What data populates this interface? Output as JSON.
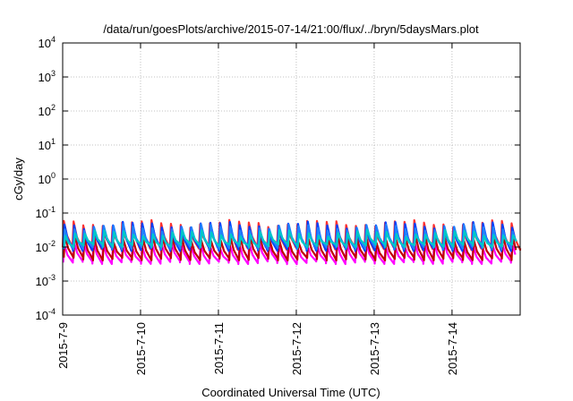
{
  "chart_data": {
    "type": "line",
    "title": "/data/run/goesPlots/archive/2015-07-14/21:00/flux/../bryn/5daysMars.plot",
    "xlabel": "Coordinated Universal Time (UTC)",
    "ylabel": "cGy/day",
    "yscale": "log",
    "grid": true,
    "xlim": [
      "2015-07-09",
      "2015-07-14T21:00"
    ],
    "ylim": [
      0.0001,
      10000
    ],
    "x_ticks": [
      "2015-7-9",
      "2015-7-10",
      "2015-7-11",
      "2015-7-12",
      "2015-7-13",
      "2015-7-14"
    ],
    "y_ticks": [
      {
        "base": "10",
        "exp": "-4"
      },
      {
        "base": "10",
        "exp": "-3"
      },
      {
        "base": "10",
        "exp": "-2"
      },
      {
        "base": "10",
        "exp": "-1"
      },
      {
        "base": "10",
        "exp": "0"
      },
      {
        "base": "10",
        "exp": "1"
      },
      {
        "base": "10",
        "exp": "2"
      },
      {
        "base": "10",
        "exp": "3"
      },
      {
        "base": "10",
        "exp": "4"
      }
    ],
    "pattern": {
      "period_hours": 3,
      "cycles": 47,
      "note_values": "sawtooth: each cycle rises sharply to peak then decays to trough"
    },
    "series": [
      {
        "color": "#ff00ff",
        "peak": 0.012,
        "trough": 0.0035
      },
      {
        "color": "#c00000",
        "peak": 0.018,
        "trough": 0.0045
      },
      {
        "color": "#ff3030",
        "peak": 0.05,
        "trough": 0.009
      },
      {
        "color": "#0040ff",
        "peak": 0.045,
        "trough": 0.0085
      },
      {
        "color": "#2080ff",
        "peak": 0.038,
        "trough": 0.0095
      },
      {
        "color": "#00c8c8",
        "peak": 0.026,
        "trough": 0.011
      }
    ]
  }
}
